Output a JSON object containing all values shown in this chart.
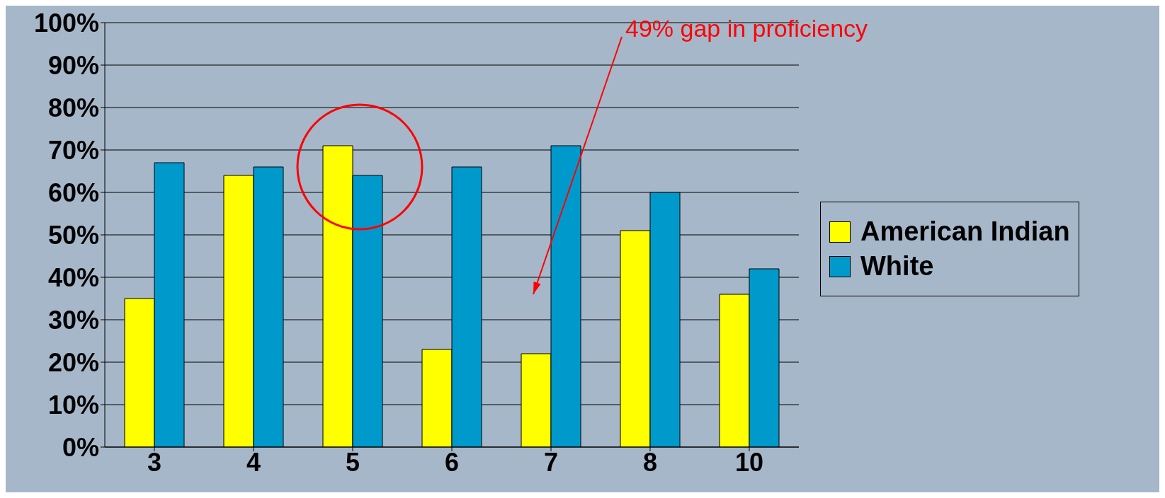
{
  "chart_data": {
    "type": "bar",
    "categories": [
      "3",
      "4",
      "5",
      "6",
      "7",
      "8",
      "10"
    ],
    "series": [
      {
        "name": "American Indian",
        "color": "#ffff00",
        "values": [
          35,
          64,
          71,
          23,
          22,
          51,
          36
        ]
      },
      {
        "name": "White",
        "color": "#0099cc",
        "values": [
          67,
          66,
          64,
          66,
          71,
          60,
          42
        ]
      }
    ],
    "ylim": [
      0,
      100
    ],
    "yticks": [
      {
        "value": 0,
        "label": "0%"
      },
      {
        "value": 10,
        "label": "10%"
      },
      {
        "value": 20,
        "label": "20%"
      },
      {
        "value": 30,
        "label": "30%"
      },
      {
        "value": 40,
        "label": "40%"
      },
      {
        "value": 50,
        "label": "50%"
      },
      {
        "value": 60,
        "label": "60%"
      },
      {
        "value": 70,
        "label": "70%"
      },
      {
        "value": 80,
        "label": "80%"
      },
      {
        "value": 90,
        "label": "90%"
      },
      {
        "value": 100,
        "label": "100%"
      }
    ],
    "grid": "y",
    "legend": "right",
    "annotations": [
      "49% gap in proficiency"
    ]
  }
}
